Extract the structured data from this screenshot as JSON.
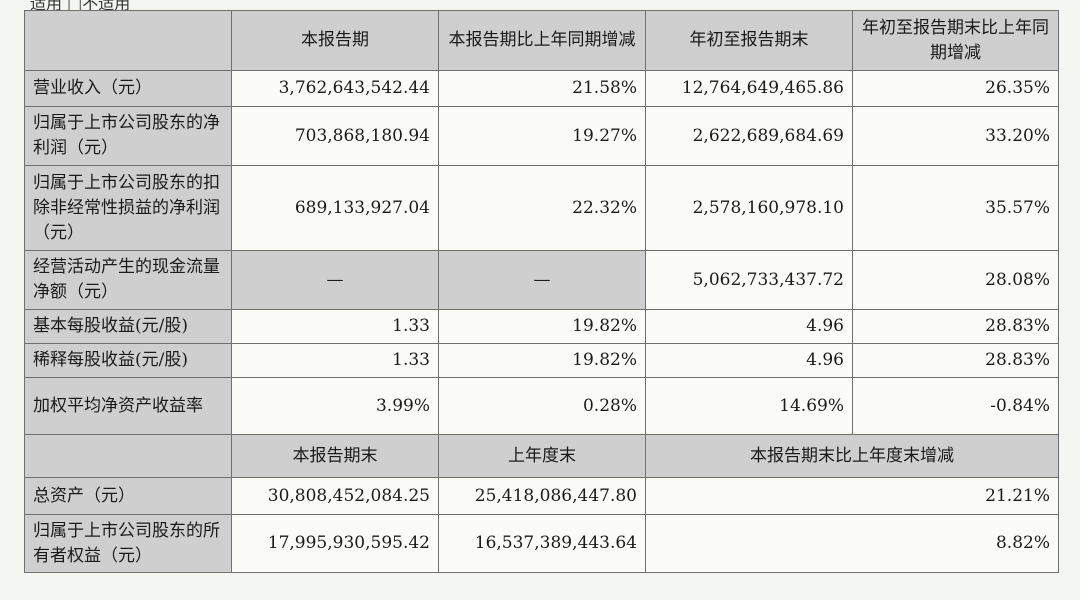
{
  "top_text": "适用  □不适用",
  "table1": {
    "headers": [
      "本报告期",
      "本报告期比上年同期增减",
      "年初至报告期末",
      "年初至报告期末比上年同期增减"
    ],
    "rows": [
      {
        "label": "营业收入（元）",
        "c1": "3,762,643,542.44",
        "c2": "21.58%",
        "c3": "12,764,649,465.86",
        "c4": "26.35%"
      },
      {
        "label": "归属于上市公司股东的净利润（元）",
        "c1": "703,868,180.94",
        "c2": "19.27%",
        "c3": "2,622,689,684.69",
        "c4": "33.20%"
      },
      {
        "label": "归属于上市公司股东的扣除非经常性损益的净利润（元）",
        "c1": "689,133,927.04",
        "c2": "22.32%",
        "c3": "2,578,160,978.10",
        "c4": "35.57%"
      },
      {
        "label": "经营活动产生的现金流量净额（元）",
        "c1": "—",
        "c2": "—",
        "c3": "5,062,733,437.72",
        "c4": "28.08%"
      },
      {
        "label": "基本每股收益(元/股)",
        "c1": "1.33",
        "c2": "19.82%",
        "c3": "4.96",
        "c4": "28.83%"
      },
      {
        "label": "稀释每股收益(元/股)",
        "c1": "1.33",
        "c2": "19.82%",
        "c3": "4.96",
        "c4": "28.83%"
      },
      {
        "label": "加权平均净资产收益率",
        "c1": "3.99%",
        "c2": "0.28%",
        "c3": "14.69%",
        "c4": "-0.84%"
      }
    ]
  },
  "table2": {
    "headers": [
      "本报告期末",
      "上年度末",
      "本报告期末比上年度末增减"
    ],
    "rows": [
      {
        "label": "总资产（元）",
        "c1": "30,808,452,084.25",
        "c2": "25,418,086,447.80",
        "c3": "21.21%"
      },
      {
        "label": "归属于上市公司股东的所有者权益（元）",
        "c1": "17,995,930,595.42",
        "c2": "16,537,389,443.64",
        "c3": "8.82%"
      }
    ]
  }
}
